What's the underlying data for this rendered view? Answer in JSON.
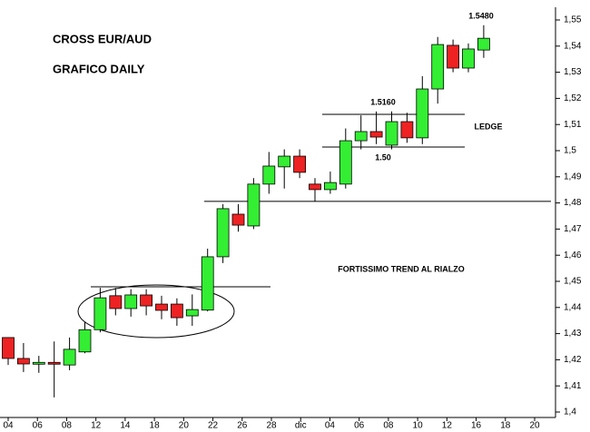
{
  "chart_data": {
    "type": "candlestick",
    "title": "CROSS EUR/AUD",
    "subtitle": "GRAFICO DAILY",
    "x_labels": [
      "04",
      "06",
      "08",
      "12",
      "14",
      "18",
      "20",
      "22",
      "26",
      "28",
      "dic",
      "04",
      "06",
      "08",
      "10",
      "12",
      "16",
      "18",
      "20"
    ],
    "up_color": "#33ee33",
    "down_color": "#ee2222",
    "candles": [
      {
        "open": 1.4285,
        "high": 1.4285,
        "low": 1.418,
        "close": 1.4205
      },
      {
        "open": 1.4205,
        "high": 1.4264,
        "low": 1.4153,
        "close": 1.4184
      },
      {
        "open": 1.4185,
        "high": 1.4215,
        "low": 1.415,
        "close": 1.419
      },
      {
        "open": 1.419,
        "high": 1.427,
        "low": 1.4056,
        "close": 1.4185
      },
      {
        "open": 1.418,
        "high": 1.4285,
        "low": 1.416,
        "close": 1.424
      },
      {
        "open": 1.423,
        "high": 1.4345,
        "low": 1.4225,
        "close": 1.4315
      },
      {
        "open": 1.4315,
        "high": 1.4475,
        "low": 1.4305,
        "close": 1.4437
      },
      {
        "open": 1.4445,
        "high": 1.4475,
        "low": 1.437,
        "close": 1.4396
      },
      {
        "open": 1.4396,
        "high": 1.447,
        "low": 1.4365,
        "close": 1.4448
      },
      {
        "open": 1.4448,
        "high": 1.447,
        "low": 1.437,
        "close": 1.4406
      },
      {
        "open": 1.4413,
        "high": 1.4445,
        "low": 1.4355,
        "close": 1.4389
      },
      {
        "open": 1.4413,
        "high": 1.4435,
        "low": 1.433,
        "close": 1.4361
      },
      {
        "open": 1.4368,
        "high": 1.445,
        "low": 1.433,
        "close": 1.4392
      },
      {
        "open": 1.439,
        "high": 1.4625,
        "low": 1.4385,
        "close": 1.4594
      },
      {
        "open": 1.4594,
        "high": 1.4795,
        "low": 1.457,
        "close": 1.4778
      },
      {
        "open": 1.4757,
        "high": 1.4795,
        "low": 1.469,
        "close": 1.4715
      },
      {
        "open": 1.4712,
        "high": 1.4895,
        "low": 1.47,
        "close": 1.4872
      },
      {
        "open": 1.4872,
        "high": 1.4995,
        "low": 1.4835,
        "close": 1.4941
      },
      {
        "open": 1.4938,
        "high": 1.5005,
        "low": 1.4855,
        "close": 1.4979
      },
      {
        "open": 1.4979,
        "high": 1.5005,
        "low": 1.4895,
        "close": 1.4917
      },
      {
        "open": 1.4872,
        "high": 1.4895,
        "low": 1.4805,
        "close": 1.4851
      },
      {
        "open": 1.4851,
        "high": 1.492,
        "low": 1.4835,
        "close": 1.4878
      },
      {
        "open": 1.4872,
        "high": 1.5085,
        "low": 1.4855,
        "close": 1.5038
      },
      {
        "open": 1.5038,
        "high": 1.5135,
        "low": 1.5005,
        "close": 1.5073
      },
      {
        "open": 1.5073,
        "high": 1.515,
        "low": 1.5025,
        "close": 1.5052
      },
      {
        "open": 1.5021,
        "high": 1.515,
        "low": 1.5005,
        "close": 1.5111
      },
      {
        "open": 1.5111,
        "high": 1.5145,
        "low": 1.503,
        "close": 1.5049
      },
      {
        "open": 1.5049,
        "high": 1.5285,
        "low": 1.5025,
        "close": 1.5236
      },
      {
        "open": 1.5236,
        "high": 1.5435,
        "low": 1.518,
        "close": 1.5406
      },
      {
        "open": 1.5403,
        "high": 1.5425,
        "low": 1.53,
        "close": 1.5316
      },
      {
        "open": 1.5316,
        "high": 1.541,
        "low": 1.53,
        "close": 1.5389
      },
      {
        "open": 1.5385,
        "high": 1.548,
        "low": 1.5355,
        "close": 1.543
      }
    ],
    "levels": [
      1.4806,
      1.4479,
      1.5139,
      1.5014
    ],
    "annotations": [
      "1.5480",
      "1.5160",
      "1.50",
      "LEDGE",
      "FORTISSIMO TREND AL RIALZO"
    ],
    "ylim": [
      1.4,
      1.55
    ],
    "yticks": [
      {
        "value": 1.4,
        "label": "1,4"
      },
      {
        "value": 1.41,
        "label": "1,41"
      },
      {
        "value": 1.42,
        "label": "1,42"
      },
      {
        "value": 1.43,
        "label": "1,43"
      },
      {
        "value": 1.44,
        "label": "1,44"
      },
      {
        "value": 1.45,
        "label": "1,45"
      },
      {
        "value": 1.46,
        "label": "1,46"
      },
      {
        "value": 1.47,
        "label": "1,47"
      },
      {
        "value": 1.48,
        "label": "1,48"
      },
      {
        "value": 1.49,
        "label": "1,49"
      },
      {
        "value": 1.5,
        "label": "1,5"
      },
      {
        "value": 1.51,
        "label": "1,51"
      },
      {
        "value": 1.52,
        "label": "1,52"
      },
      {
        "value": 1.53,
        "label": "1,53"
      },
      {
        "value": 1.54,
        "label": "1,54"
      },
      {
        "value": 1.55,
        "label": "1,55"
      }
    ]
  }
}
